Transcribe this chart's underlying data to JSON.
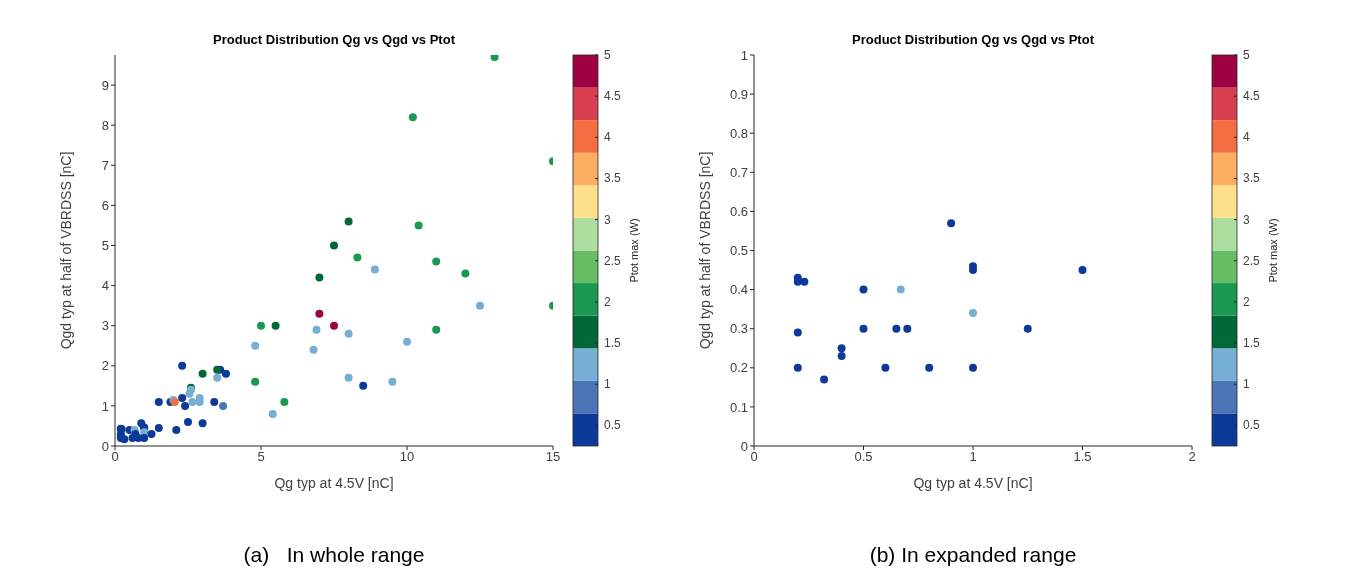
{
  "chart_data": [
    {
      "type": "scatter",
      "title": "Product Distribution Qg vs Qgd vs Ptot",
      "xlabel": "Qg typ at 4.5V [nC]",
      "ylabel": "Qgd typ at half of VBRDSS [nC]",
      "clabel": "Ptot max (W)",
      "marker": "circle",
      "xlim": [
        0,
        15
      ],
      "xticks": [
        0,
        5,
        10,
        15
      ],
      "ylim": [
        0,
        9.75
      ],
      "yticks": [
        0,
        1,
        2,
        3,
        4,
        5,
        6,
        7,
        8,
        9
      ],
      "clim": [
        0.25,
        5
      ],
      "cticks": [
        0.5,
        1,
        1.5,
        2,
        2.5,
        3,
        3.5,
        4,
        4.5,
        5
      ],
      "colors": [
        "#0d3a99",
        "#4a76b8",
        "#76aed4",
        "#006837",
        "#1a9850",
        "#66bd63",
        "#addea0",
        "#fee08b",
        "#fdae61",
        "#f46d43",
        "#d73f51",
        "#9e0142"
      ],
      "annotations": [
        "(a)   In whole range"
      ],
      "series": [
        {
          "x": [
            13,
            10.2,
            15,
            8,
            10.4,
            7.5,
            8.3,
            8.9,
            11,
            7,
            12,
            15,
            12.5,
            7,
            7.5,
            5,
            5.5,
            6.9,
            8,
            11,
            4.8,
            6.8,
            10,
            4.8,
            8,
            8.5,
            9.5,
            5.8,
            5.4,
            3,
            3.6,
            3.5,
            3.8,
            3.5,
            3.4,
            3.7,
            3,
            2.3,
            2.6,
            2.6,
            2.55,
            2.3,
            1.5,
            1.9,
            2,
            2.05,
            2.4,
            2.65,
            2.9,
            2.9,
            2.5,
            2.1,
            0.2,
            0.2,
            0.23,
            0.2,
            0.2,
            0.32,
            0.5,
            0.6,
            0.67,
            0.7,
            0.8,
            0.9,
            1,
            1,
            1,
            1,
            1.25,
            1.5
          ],
          "values": [
            9.7,
            8.2,
            7.1,
            5.6,
            5.5,
            5,
            4.7,
            4.4,
            4.6,
            4.2,
            4.3,
            3.5,
            3.5,
            3.3,
            3,
            3,
            3,
            2.9,
            2.8,
            2.9,
            2.5,
            2.4,
            2.6,
            1.6,
            1.7,
            1.5,
            1.6,
            1.1,
            0.8,
            1.8,
            1.9,
            1.9,
            1.8,
            1.7,
            1.1,
            1,
            0.57,
            2,
            1.45,
            1.4,
            1.3,
            1.2,
            1.1,
            1.1,
            1.15,
            1.1,
            1,
            1.1,
            1.2,
            1.1,
            0.6,
            0.4,
            0.43,
            0.42,
            0.42,
            0.29,
            0.2,
            0.17,
            0.4,
            0.2,
            0.4,
            0.3,
            0.2,
            0.57,
            0.46,
            0.45,
            0.34,
            0.2,
            0.3,
            0.45
          ],
          "cvalues": [
            2,
            2,
            2,
            1.6,
            2,
            1.6,
            2,
            1.25,
            2,
            1.6,
            2,
            2,
            1.25,
            4.8,
            4.8,
            2,
            1.6,
            1.25,
            1.25,
            2,
            1.25,
            1.25,
            1.25,
            2,
            1.25,
            0.5,
            1.25,
            2,
            1.25,
            1.6,
            0.5,
            1.6,
            0.5,
            1.25,
            0.5,
            1,
            0.5,
            0.5,
            1.6,
            1.25,
            1.25,
            0.5,
            0.5,
            0.5,
            1.25,
            4,
            0.5,
            1.25,
            1.25,
            1.25,
            0.5,
            0.5,
            0.5,
            0.5,
            0.5,
            0.5,
            0.5,
            0.5,
            0.5,
            0.5,
            1.25,
            0.5,
            0.5,
            0.5,
            0.5,
            0.5,
            1.25,
            0.5,
            0.5,
            0.5
          ]
        }
      ]
    },
    {
      "type": "scatter",
      "title": "Product Distribution Qg vs Qgd vs Ptot",
      "xlabel": "Qg typ at 4.5V [nC]",
      "ylabel": "Qgd typ at half of VBRDSS [nC]",
      "clabel": "Ptot max (W)",
      "marker": "circle",
      "xlim": [
        0,
        2
      ],
      "xticks": [
        0,
        0.5,
        1,
        1.5,
        2
      ],
      "ylim": [
        0,
        1
      ],
      "yticks": [
        0,
        0.1,
        0.2,
        0.3,
        0.4,
        0.5,
        0.6,
        0.7,
        0.8,
        0.9,
        1
      ],
      "clim": [
        0.25,
        5
      ],
      "cticks": [
        0.5,
        1,
        1.5,
        2,
        2.5,
        3,
        3.5,
        4,
        4.5,
        5
      ],
      "colors": [
        "#0d3a99",
        "#4a76b8",
        "#76aed4",
        "#006837",
        "#1a9850",
        "#66bd63",
        "#addea0",
        "#fee08b",
        "#fdae61",
        "#f46d43",
        "#d73f51",
        "#9e0142"
      ],
      "annotations": [
        "(b) In expanded range"
      ],
      "series": [
        {
          "x": [
            0.2,
            0.2,
            0.23,
            0.2,
            0.2,
            0.32,
            0.4,
            0.4,
            0.5,
            0.5,
            0.6,
            0.65,
            0.67,
            0.7,
            0.8,
            0.9,
            1,
            1,
            1,
            1,
            1.25,
            1.5
          ],
          "values": [
            0.43,
            0.42,
            0.42,
            0.29,
            0.2,
            0.17,
            0.25,
            0.23,
            0.4,
            0.3,
            0.2,
            0.3,
            0.4,
            0.3,
            0.2,
            0.57,
            0.46,
            0.45,
            0.34,
            0.2,
            0.3,
            0.45
          ],
          "cvalues": [
            0.5,
            0.5,
            0.5,
            0.5,
            0.5,
            0.5,
            0.5,
            0.5,
            0.5,
            0.5,
            0.5,
            0.5,
            1.25,
            0.5,
            0.5,
            0.5,
            0.5,
            0.5,
            1.25,
            0.5,
            0.5,
            0.5
          ]
        }
      ]
    }
  ]
}
